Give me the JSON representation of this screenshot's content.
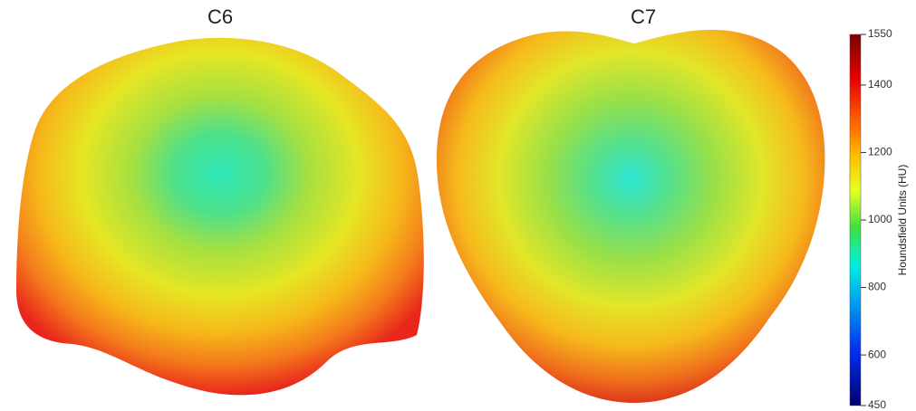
{
  "panels": [
    {
      "label": "C6"
    },
    {
      "label": "C7"
    }
  ],
  "colorbar": {
    "title": "Houndsfield Units (HU)",
    "lim": [
      450,
      1550
    ],
    "ticks": [
      450,
      600,
      800,
      1000,
      1200,
      1400,
      1550
    ]
  }
}
